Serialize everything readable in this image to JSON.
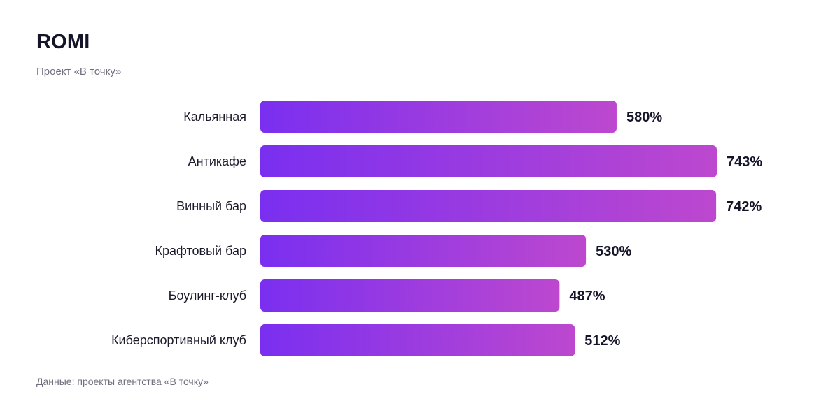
{
  "header": {
    "title": "ROMI",
    "subtitle": "Проект «В точку»"
  },
  "footer": {
    "source": "Данные: проекты агентства «В точку»"
  },
  "colors": {
    "bar_start": "#7a2ff0",
    "bar_end": "#bd48cf"
  },
  "chart_data": {
    "type": "bar",
    "orientation": "horizontal",
    "title": "ROMI",
    "subtitle": "Проект «В точку»",
    "categories": [
      "Кальянная",
      "Антикафе",
      "Винный бар",
      "Крафтовый бар",
      "Боулинг-клуб",
      "Киберспортивный клуб"
    ],
    "values": [
      580,
      743,
      742,
      530,
      487,
      512
    ],
    "value_labels": [
      "580%",
      "743%",
      "742%",
      "530%",
      "487%",
      "512%"
    ],
    "unit": "%",
    "xlim": [
      0,
      743
    ],
    "grid": false,
    "legend": "none"
  }
}
